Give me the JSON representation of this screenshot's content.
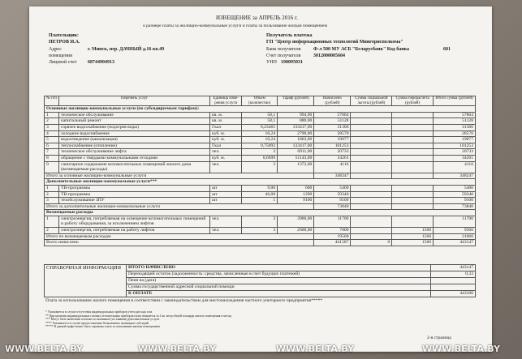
{
  "header": {
    "title": "ИЗВЕЩЕНИЕ за АПРЕЛЬ 2016 г.",
    "subtitle": "о размере платы за жилищно-коммунальные услуги и платы за пользование жилым помещением"
  },
  "payer": {
    "label": "Плательщик:",
    "name": "ПЕТРОВ И.А.",
    "address_label": "Адрес",
    "address": "г. Минск, пер. ДАЧНЫЙ д.16 кв.49",
    "premises_label": "помещения",
    "account_label": "Лицевой счет",
    "account": "68744904913"
  },
  "recipient": {
    "label": "Получатель платежа",
    "name": "ГП \"Центр информационных технологий Мингорисполкома\"",
    "bank_label": "Банк получателя",
    "bank": "Ф-л 500 МУ АСБ \"Беларусбанк\" Код банка",
    "bank_code": "601",
    "account_label": "Счет получателя",
    "account": "3012000005604",
    "unp_label": "УНП",
    "unp": "190095031"
  },
  "table": {
    "columns": [
      "№ п/п",
      "Перечень услуг",
      "Единица изме-рения услуги",
      "Объем (количество)",
      "Тариф (рублей)",
      "Начислено (рублей)",
      "Сумма социальной льготы (рублей)",
      "Сумма перерасчета (рублей)",
      "Итого сумма (рублей)"
    ],
    "sections": [
      {
        "title": "Основные жилищно-коммунальные услуги (по субсидируемым тарифам):",
        "rows": [
          [
            "1",
            "техническое обслуживание",
            "кв. м.",
            "58,1",
            "994,90",
            "57804",
            null,
            null,
            "57804"
          ],
          [
            "2",
            "капитальный ремонт",
            "кв. м.",
            "58,1",
            "880,00",
            "51128",
            null,
            null,
            "51128"
          ],
          [
            "3",
            "горячее водоснабжение (подогрев воды)",
            "Гкал",
            "0,23465",
            "133417,00",
            "31306",
            null,
            null,
            "31306"
          ],
          [
            "4",
            "холодное водоснабжение",
            "куб. м.",
            "10,24",
            "2790,00",
            "28570",
            null,
            null,
            "28570"
          ],
          [
            "5",
            "водоотведение (канализация)",
            "куб. м.",
            "10,24",
            "1863,00",
            "19077",
            null,
            null,
            "19077"
          ],
          [
            "6",
            "теплоснабжение (отопление)",
            "Гкал",
            "0,75892",
            "133417,00",
            "101253",
            null,
            null,
            "101253"
          ],
          [
            "7",
            "техническое обслуживание лифта",
            "чел.",
            "3",
            "6911,00",
            "20733",
            null,
            null,
            "20733"
          ],
          [
            "8",
            "обращение с твердыми коммунальными отходами",
            "куб. м.",
            "0,6699",
            "51143,00",
            "34261",
            null,
            null,
            "34261"
          ],
          [
            "9",
            "санитарное содержание вспомогательных помещений жилого дома (возмещаемые расходы)",
            "чел.",
            "3",
            "1372,00",
            "4116",
            null,
            null,
            "4116"
          ]
        ],
        "total": {
          "label": "Итого за основные жилищно-коммунальные услуги",
          "cells": [
            "348247",
            null,
            null,
            "348247"
          ]
        }
      },
      {
        "title": "Дополнительные жилищно-коммунальные услуги***",
        "rows": [
          [
            "1",
            "ТВ-программы",
            "шт",
            "9,00",
            "600",
            "5400",
            null,
            null,
            "5400"
          ],
          [
            "2",
            "ТВ-программы",
            "шт",
            "46,00",
            "1290",
            "59340",
            null,
            null,
            "59340"
          ],
          [
            "3",
            "техобслуживание ЗПУ",
            "шт",
            "1",
            "9100",
            "9100",
            null,
            null,
            "9100"
          ]
        ],
        "total": {
          "label": "Итого за дополнительные жилищно-коммунальные услуги",
          "cells": [
            "73840",
            null,
            null,
            "73840"
          ]
        }
      },
      {
        "title": "Возмещаемые расходы",
        "rows": [
          [
            "1",
            "электроэнергия, потребляемая на освещение вспомогательных помещений и работу оборудования, за исключением лифтов",
            "чел.",
            "3",
            "3900,00",
            "11700",
            null,
            null,
            "11700"
          ],
          [
            "2",
            "электроэнергия, потребляемая на работу лифтов",
            "чел.",
            "3",
            "2600,00",
            "7800",
            null,
            "1560",
            "9360"
          ]
        ],
        "total": {
          "label": "Итого по возмещаемым расходам",
          "cells": [
            "19500",
            null,
            "1560",
            "21060"
          ]
        }
      }
    ],
    "grand_total": {
      "label": "Всего начислено",
      "cells": [
        "441587",
        "0",
        "1560",
        "443147"
      ]
    }
  },
  "summary": {
    "title": "СПРАВОЧНАЯ ИНФОРМАЦИЯ",
    "rows": [
      [
        "ИТОГО НАЧИСЛЕНО",
        "443147"
      ],
      [
        "Переходящий остаток (задолженность: средства, зачисленные в счет будущих платежей)",
        "0,33"
      ],
      [
        "Пеня на (дата)",
        null
      ],
      [
        "Сумма государственной адресной социальной помощи",
        null
      ],
      [
        "К ОПЛАТЕ",
        "443100"
      ]
    ]
  },
  "note": "Плата за использование жилого помещения в соответствии с законодательством для местонахождения частного унитарного предприятия*****",
  "footnotes": [
    "* Указывается в случае отсутствия индивидуальных приборов учета расхода газа",
    "** При наличии индивидуальных газовых отопительных приборов плата взимается за 1 кв. метр общей площади жилого помещения в месяц",
    "*** Могут быть включены платежи за оказанные (по заявкам) дополнительные услуги",
    "**** Указывается в случае предоставления безналичных жилищных субсидий",
    "***** В данной графе может быть отражена плата за пользование жилым помещением"
  ],
  "page": "2-я страница",
  "watermark": "WWW.BELTA.BY"
}
